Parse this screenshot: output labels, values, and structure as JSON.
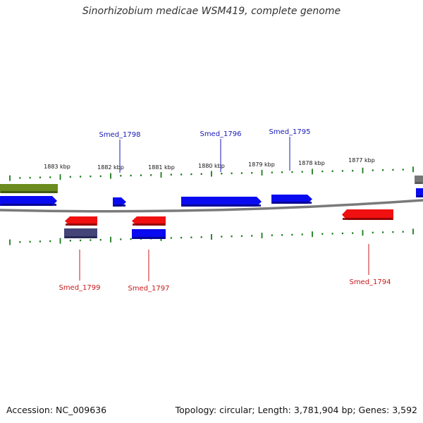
{
  "title": "Sinorhizobium medicae WSM419, complete genome",
  "footer": {
    "accession": "Accession: NC_009636",
    "summary": "Topology: circular; Length: 3,781,904 bp; Genes: 3,592"
  },
  "colors": {
    "forward": "#0a0af0",
    "reverse": "#f01010",
    "other_forward": "#6b8c1e",
    "other_reverse": "#444478",
    "grey": "#777777",
    "ticks": "#1a7a1a",
    "label_forward": "#1818b8",
    "label_reverse": "#c81818"
  },
  "ruler_labels": [
    "1883 kbp",
    "1882 kbp",
    "1881 kbp",
    "1880 kbp",
    "1879 kbp",
    "1878 kbp",
    "1877 kbp"
  ],
  "gene_labels": {
    "forward": [
      "Smed_1798",
      "Smed_1796",
      "Smed_1795"
    ],
    "reverse": [
      "Smed_1799",
      "Smed_1797",
      "Smed_1794"
    ]
  }
}
